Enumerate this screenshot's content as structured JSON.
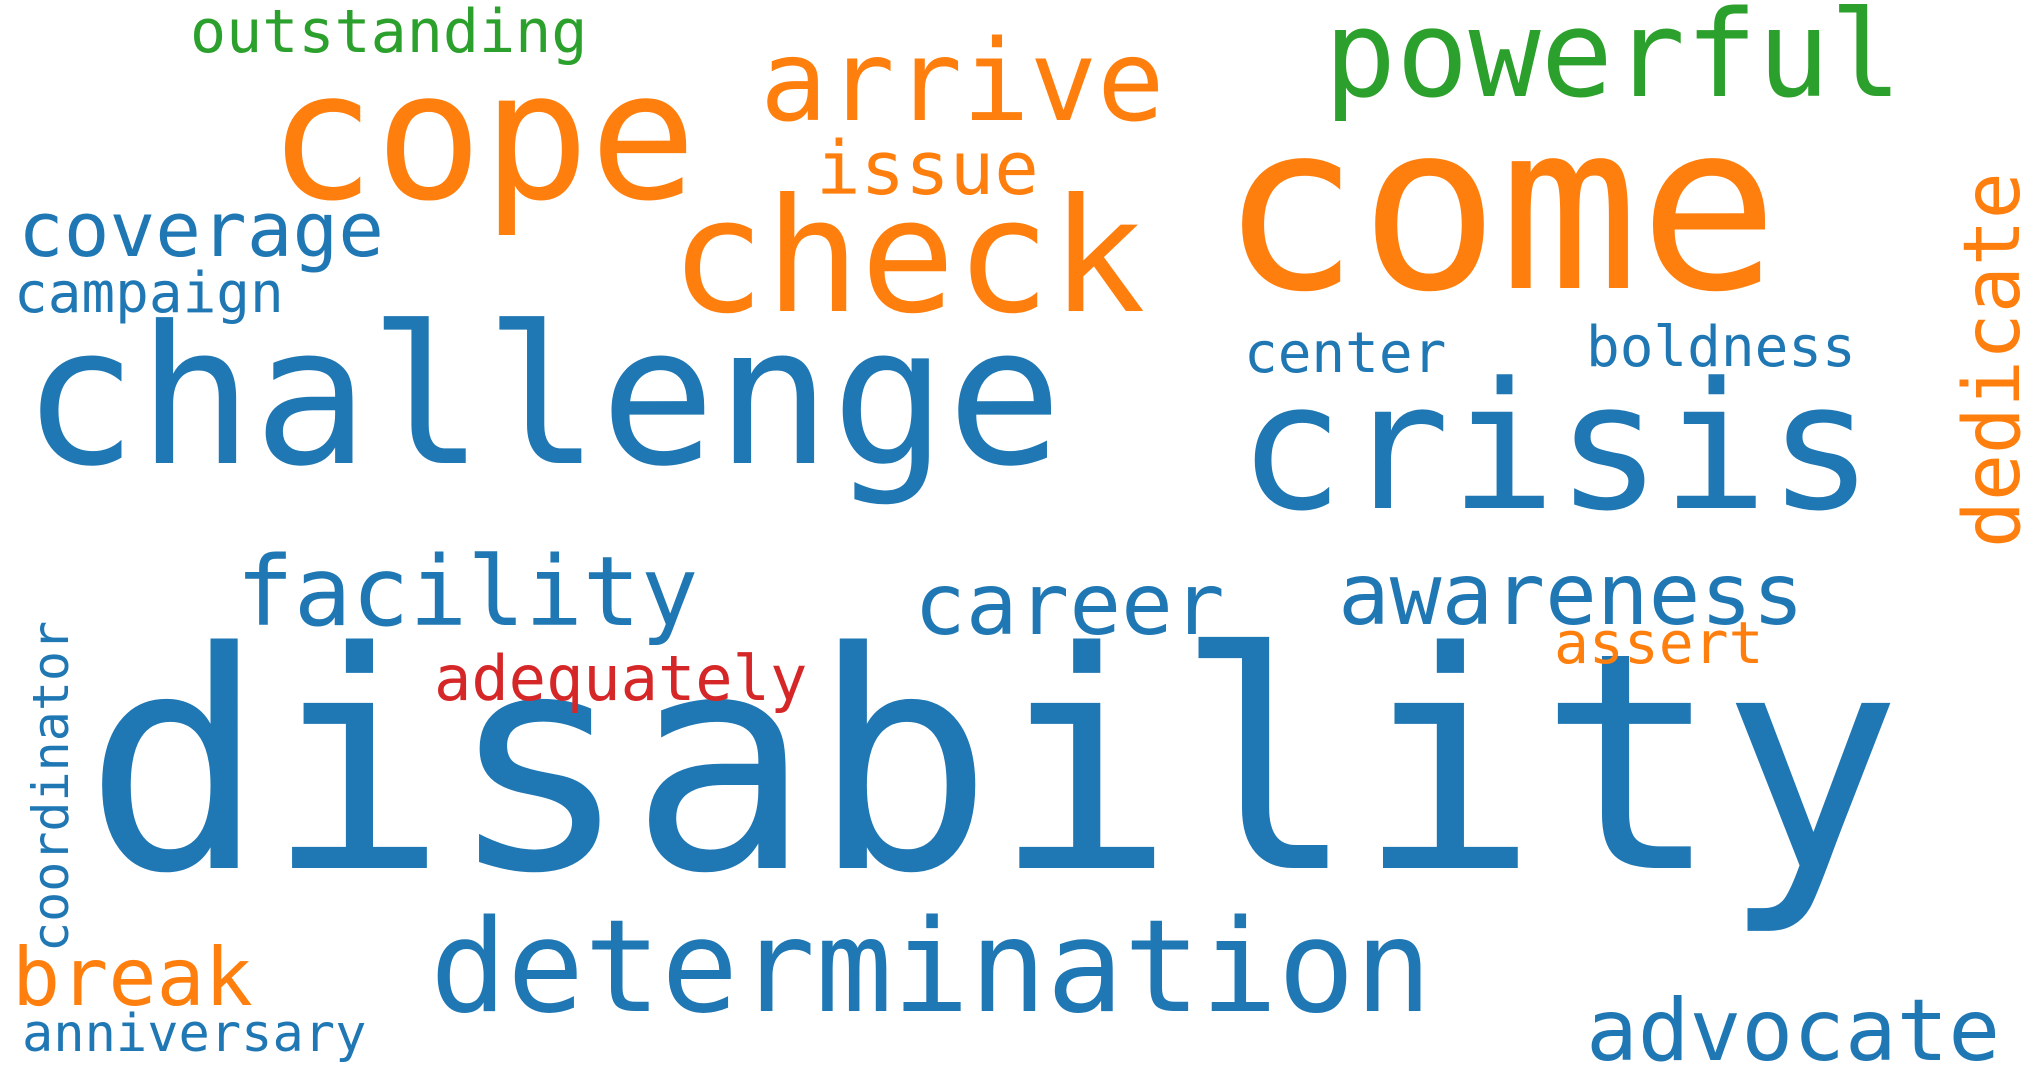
{
  "colors": {
    "blue": "#1f77b4",
    "orange": "#ff7f0e",
    "green": "#2ca02c",
    "red": "#d62728"
  },
  "words": [
    {
      "text": "disability",
      "color": "#1f77b4",
      "orientation": "horizontal"
    },
    {
      "text": "challenge",
      "color": "#1f77b4",
      "orientation": "horizontal"
    },
    {
      "text": "come",
      "color": "#ff7f0e",
      "orientation": "horizontal"
    },
    {
      "text": "crisis",
      "color": "#1f77b4",
      "orientation": "horizontal"
    },
    {
      "text": "cope",
      "color": "#ff7f0e",
      "orientation": "horizontal"
    },
    {
      "text": "check",
      "color": "#ff7f0e",
      "orientation": "horizontal"
    },
    {
      "text": "determination",
      "color": "#1f77b4",
      "orientation": "horizontal"
    },
    {
      "text": "powerful",
      "color": "#2ca02c",
      "orientation": "horizontal"
    },
    {
      "text": "arrive",
      "color": "#ff7f0e",
      "orientation": "horizontal"
    },
    {
      "text": "facility",
      "color": "#1f77b4",
      "orientation": "horizontal"
    },
    {
      "text": "awareness",
      "color": "#1f77b4",
      "orientation": "horizontal"
    },
    {
      "text": "dedicate",
      "color": "#ff7f0e",
      "orientation": "vertical"
    },
    {
      "text": "advocate",
      "color": "#1f77b4",
      "orientation": "horizontal"
    },
    {
      "text": "career",
      "color": "#1f77b4",
      "orientation": "horizontal"
    },
    {
      "text": "coverage",
      "color": "#1f77b4",
      "orientation": "horizontal"
    },
    {
      "text": "break",
      "color": "#ff7f0e",
      "orientation": "horizontal"
    },
    {
      "text": "issue",
      "color": "#ff7f0e",
      "orientation": "horizontal"
    },
    {
      "text": "outstanding",
      "color": "#2ca02c",
      "orientation": "horizontal"
    },
    {
      "text": "adequately",
      "color": "#d62728",
      "orientation": "horizontal"
    },
    {
      "text": "center",
      "color": "#1f77b4",
      "orientation": "horizontal"
    },
    {
      "text": "boldness",
      "color": "#1f77b4",
      "orientation": "horizontal"
    },
    {
      "text": "campaign",
      "color": "#1f77b4",
      "orientation": "horizontal"
    },
    {
      "text": "assert",
      "color": "#ff7f0e",
      "orientation": "horizontal"
    },
    {
      "text": "coordinator",
      "color": "#1f77b4",
      "orientation": "vertical"
    },
    {
      "text": "anniversary",
      "color": "#1f77b4",
      "orientation": "horizontal"
    }
  ]
}
